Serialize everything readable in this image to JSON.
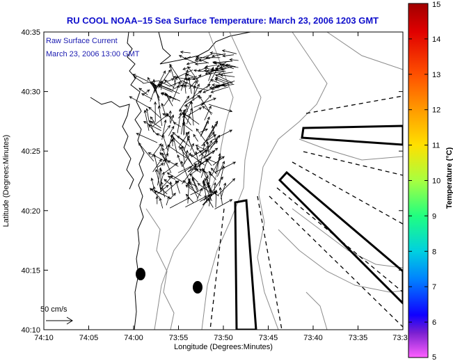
{
  "title": "RU COOL  NOAA–15  Sea Surface Temperature:  March 23, 2006 1203 GMT",
  "annotation": {
    "line1": "Raw Surface Current",
    "line2": "March 23, 2006 13:00 GMT"
  },
  "scale_label": "50 cm/s",
  "x_axis": {
    "label": "Longitude (Degrees:Minutes)",
    "ticks": [
      "74:10",
      "74:05",
      "74:00",
      "73:55",
      "73:50",
      "73:45",
      "73:40",
      "73:35",
      "73:3"
    ]
  },
  "y_axis": {
    "label": "Latitude (Degrees:Minutes)",
    "ticks": [
      "40:35",
      "40:30",
      "40:25",
      "40:20",
      "40:15",
      "40:10"
    ]
  },
  "colorbar": {
    "label": "Temperature (°C)",
    "ticks": [
      "15",
      "14",
      "13",
      "12",
      "11",
      "10",
      "9",
      "8",
      "7",
      "6",
      "5"
    ],
    "colors": [
      "#b40000",
      "#e00000",
      "#ff4000",
      "#ff9000",
      "#ffd800",
      "#c8ff30",
      "#30ff60",
      "#00e0c0",
      "#0090ff",
      "#0010ff",
      "#7000c0",
      "#ff40ff"
    ]
  }
}
